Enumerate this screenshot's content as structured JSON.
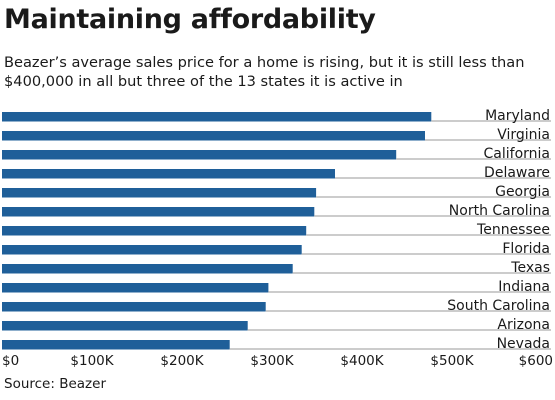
{
  "header": {
    "title": "Maintaining affordability",
    "subtitle": "Beazer’s average sales price for a home is rising, but it is still less than $400,000 in all but three of the 13 states it is active in"
  },
  "footer": {
    "source": "Source: Beazer"
  },
  "chart_data": {
    "type": "bar",
    "orientation": "horizontal",
    "categories": [
      "Maryland",
      "Virginia",
      "California",
      "Delaware",
      "Georgia",
      "North Carolina",
      "Tennessee",
      "Florida",
      "Texas",
      "Indiana",
      "South Carolina",
      "Arizona",
      "Nevada"
    ],
    "values": [
      477,
      470,
      438,
      370,
      349,
      347,
      338,
      333,
      323,
      296,
      293,
      273,
      253
    ],
    "xlim": [
      0,
      600
    ],
    "ticks": [
      0,
      100,
      200,
      300,
      400,
      500,
      600
    ],
    "tick_labels": [
      "$0",
      "$100K",
      "$200K",
      "$300K",
      "$400K",
      "$500K",
      "$600"
    ],
    "xlabel": "",
    "ylabel": "",
    "grid": false,
    "bar_color": "#1f5f99",
    "line_color": "#9a9a9a"
  }
}
